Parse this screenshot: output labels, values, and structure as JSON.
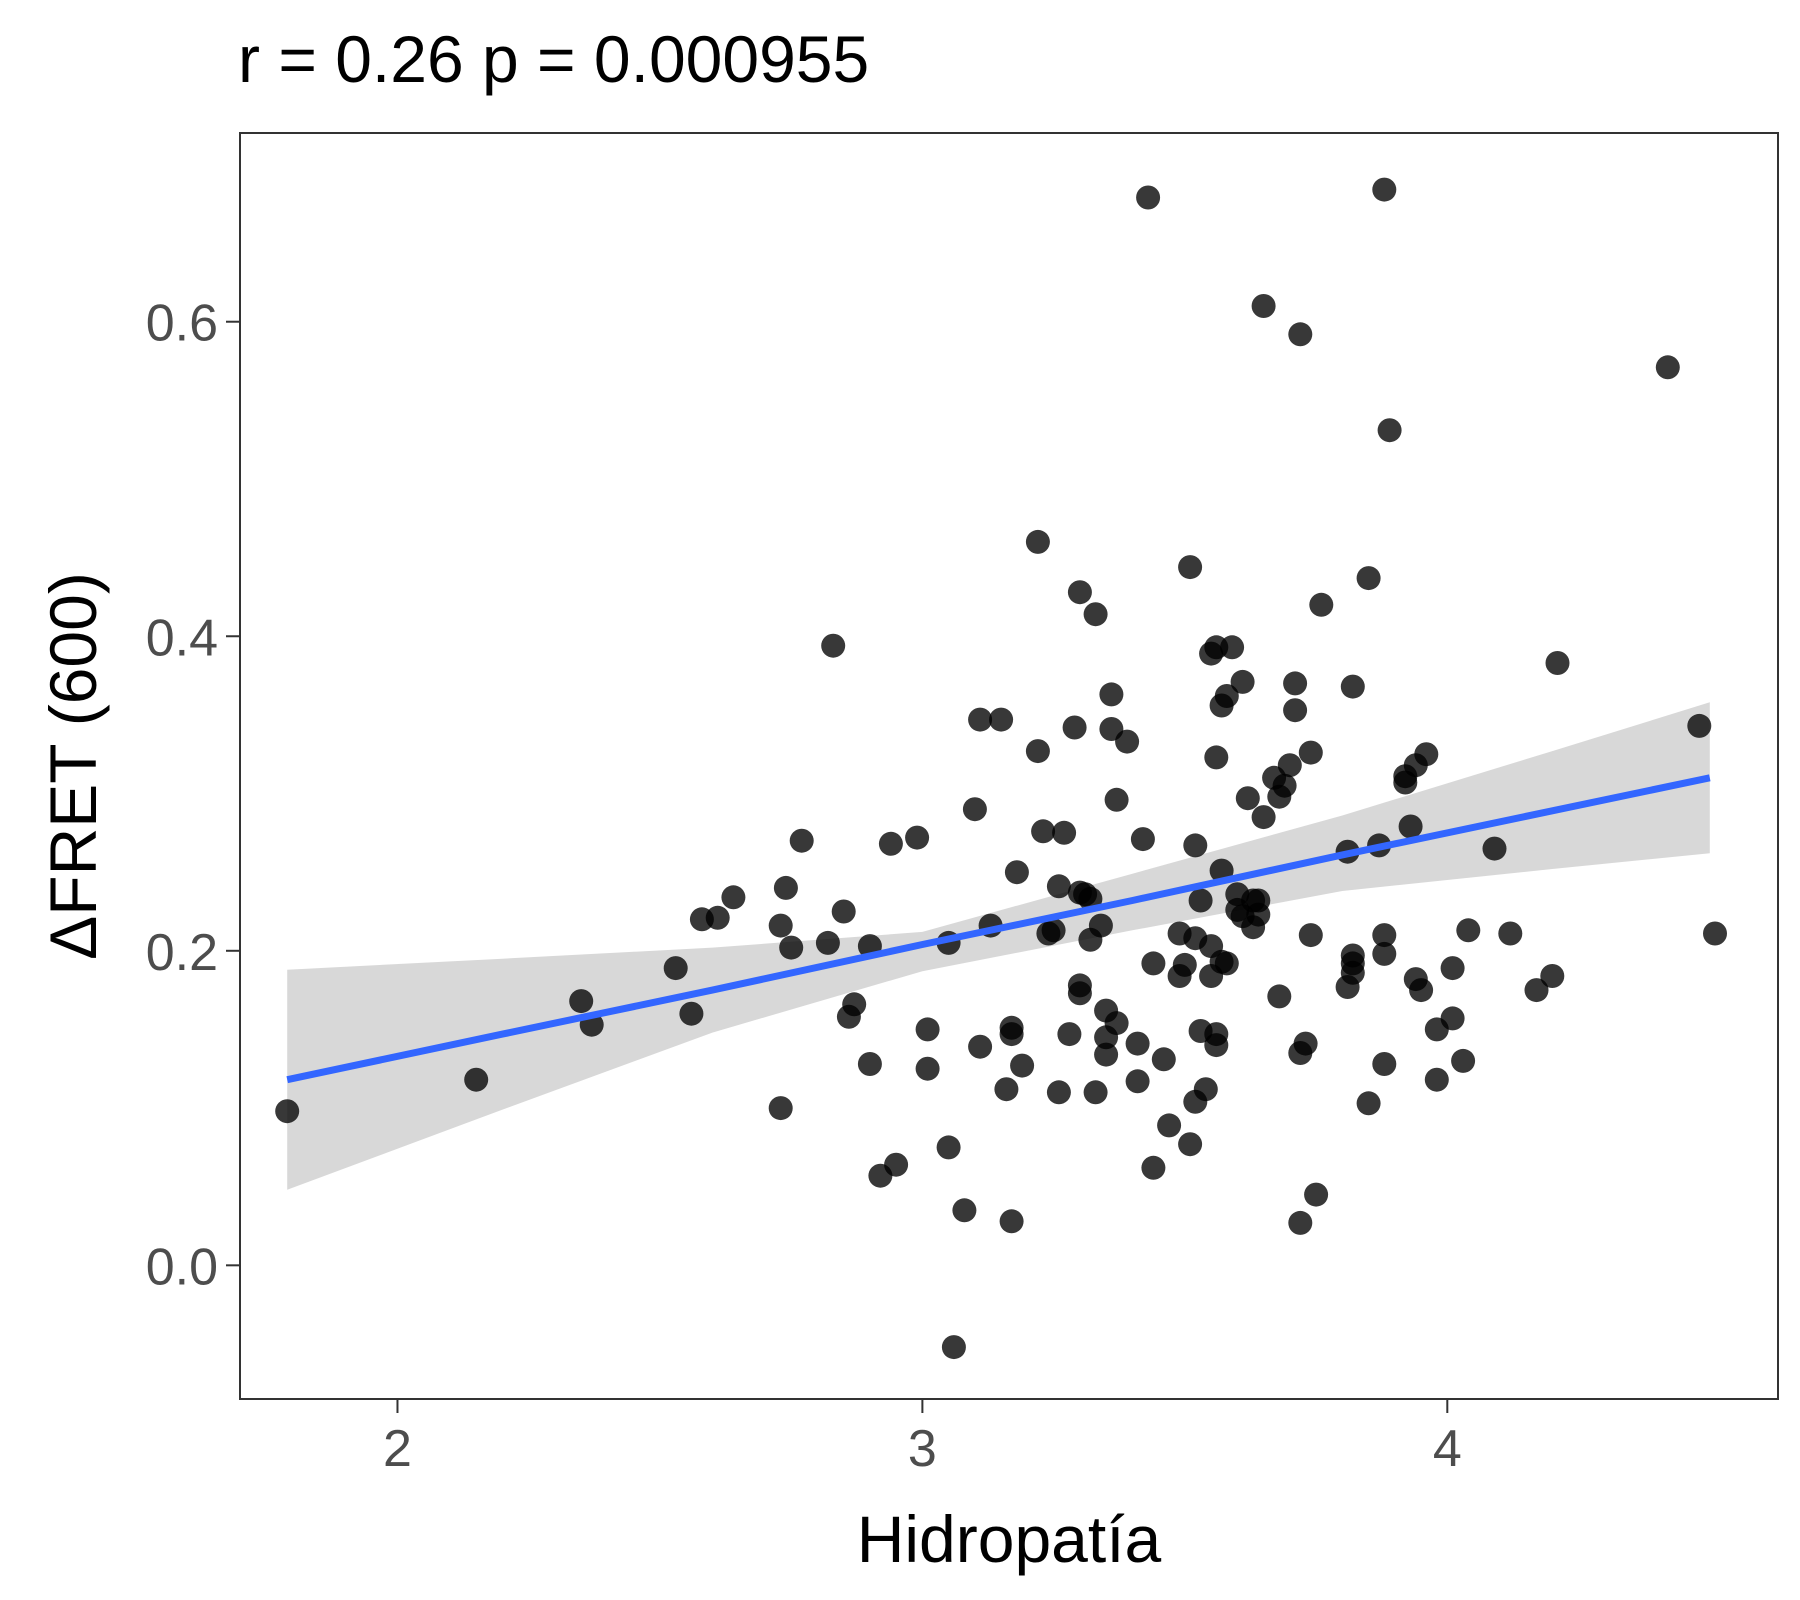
{
  "chart_data": {
    "type": "scatter",
    "title": "r =  0.26 p =  0.000955",
    "xlabel": "Hidropatía",
    "ylabel": "ΔFRET (600)",
    "xlim": [
      1.7,
      4.63
    ],
    "ylim": [
      -0.085,
      0.72
    ],
    "xticks": [
      2,
      3,
      4
    ],
    "xtick_labels": [
      "2",
      "3",
      "4"
    ],
    "yticks": [
      0.0,
      0.2,
      0.4,
      0.6
    ],
    "ytick_labels": [
      "0.0",
      "0.2",
      "0.4",
      "0.6"
    ],
    "grid": false,
    "point_color": "#000000",
    "fit": {
      "method": "linear",
      "color": "#3366ff",
      "band_color": "#bebebe",
      "x": [
        1.79,
        2.2,
        2.6,
        3.0,
        3.4,
        3.8,
        4.2,
        4.5
      ],
      "y": [
        0.118,
        0.147,
        0.175,
        0.204,
        0.232,
        0.261,
        0.289,
        0.31
      ],
      "lower": [
        0.048,
        0.099,
        0.148,
        0.187,
        0.213,
        0.238,
        0.252,
        0.262
      ],
      "upper": [
        0.188,
        0.195,
        0.202,
        0.212,
        0.249,
        0.286,
        0.327,
        0.358
      ]
    },
    "points": [
      [
        1.79,
        0.098
      ],
      [
        2.15,
        0.118
      ],
      [
        2.35,
        0.168
      ],
      [
        2.37,
        0.153
      ],
      [
        2.53,
        0.189
      ],
      [
        2.56,
        0.16
      ],
      [
        2.58,
        0.22
      ],
      [
        2.61,
        0.221
      ],
      [
        2.64,
        0.234
      ],
      [
        2.73,
        0.216
      ],
      [
        2.73,
        0.1
      ],
      [
        2.74,
        0.24
      ],
      [
        2.75,
        0.202
      ],
      [
        2.77,
        0.27
      ],
      [
        2.82,
        0.205
      ],
      [
        2.83,
        0.394
      ],
      [
        2.85,
        0.225
      ],
      [
        2.86,
        0.158
      ],
      [
        2.87,
        0.166
      ],
      [
        2.9,
        0.203
      ],
      [
        2.9,
        0.128
      ],
      [
        2.92,
        0.057
      ],
      [
        2.94,
        0.268
      ],
      [
        2.95,
        0.064
      ],
      [
        2.99,
        0.272
      ],
      [
        3.01,
        0.15
      ],
      [
        3.01,
        0.125
      ],
      [
        3.05,
        0.205
      ],
      [
        3.05,
        0.075
      ],
      [
        3.06,
        -0.052
      ],
      [
        3.08,
        0.035
      ],
      [
        3.1,
        0.29
      ],
      [
        3.11,
        0.347
      ],
      [
        3.11,
        0.139
      ],
      [
        3.13,
        0.216
      ],
      [
        3.15,
        0.347
      ],
      [
        3.16,
        0.112
      ],
      [
        3.17,
        0.151
      ],
      [
        3.17,
        0.147
      ],
      [
        3.17,
        0.028
      ],
      [
        3.18,
        0.25
      ],
      [
        3.19,
        0.127
      ],
      [
        3.22,
        0.46
      ],
      [
        3.22,
        0.327
      ],
      [
        3.23,
        0.276
      ],
      [
        3.24,
        0.211
      ],
      [
        3.25,
        0.213
      ],
      [
        3.26,
        0.241
      ],
      [
        3.26,
        0.11
      ],
      [
        3.27,
        0.275
      ],
      [
        3.28,
        0.147
      ],
      [
        3.29,
        0.342
      ],
      [
        3.3,
        0.178
      ],
      [
        3.3,
        0.173
      ],
      [
        3.3,
        0.428
      ],
      [
        3.3,
        0.237
      ],
      [
        3.31,
        0.236
      ],
      [
        3.32,
        0.207
      ],
      [
        3.32,
        0.233
      ],
      [
        3.33,
        0.414
      ],
      [
        3.33,
        0.11
      ],
      [
        3.34,
        0.216
      ],
      [
        3.35,
        0.162
      ],
      [
        3.35,
        0.145
      ],
      [
        3.35,
        0.134
      ],
      [
        3.36,
        0.363
      ],
      [
        3.36,
        0.341
      ],
      [
        3.37,
        0.154
      ],
      [
        3.37,
        0.296
      ],
      [
        3.39,
        0.333
      ],
      [
        3.41,
        0.141
      ],
      [
        3.41,
        0.117
      ],
      [
        3.42,
        0.271
      ],
      [
        3.43,
        0.679
      ],
      [
        3.44,
        0.192
      ],
      [
        3.44,
        0.062
      ],
      [
        3.46,
        0.131
      ],
      [
        3.47,
        0.089
      ],
      [
        3.49,
        0.211
      ],
      [
        3.49,
        0.184
      ],
      [
        3.5,
        0.191
      ],
      [
        3.51,
        0.444
      ],
      [
        3.51,
        0.077
      ],
      [
        3.52,
        0.208
      ],
      [
        3.52,
        0.267
      ],
      [
        3.52,
        0.104
      ],
      [
        3.53,
        0.232
      ],
      [
        3.53,
        0.149
      ],
      [
        3.54,
        0.112
      ],
      [
        3.55,
        0.389
      ],
      [
        3.55,
        0.203
      ],
      [
        3.55,
        0.184
      ],
      [
        3.56,
        0.147
      ],
      [
        3.56,
        0.14
      ],
      [
        3.56,
        0.393
      ],
      [
        3.56,
        0.323
      ],
      [
        3.57,
        0.356
      ],
      [
        3.57,
        0.251
      ],
      [
        3.57,
        0.193
      ],
      [
        3.58,
        0.362
      ],
      [
        3.58,
        0.192
      ],
      [
        3.59,
        0.393
      ],
      [
        3.6,
        0.236
      ],
      [
        3.6,
        0.226
      ],
      [
        3.61,
        0.371
      ],
      [
        3.61,
        0.222
      ],
      [
        3.62,
        0.297
      ],
      [
        3.63,
        0.232
      ],
      [
        3.63,
        0.215
      ],
      [
        3.64,
        0.232
      ],
      [
        3.64,
        0.223
      ],
      [
        3.65,
        0.61
      ],
      [
        3.65,
        0.285
      ],
      [
        3.67,
        0.31
      ],
      [
        3.68,
        0.171
      ],
      [
        3.68,
        0.298
      ],
      [
        3.69,
        0.305
      ],
      [
        3.7,
        0.318
      ],
      [
        3.71,
        0.37
      ],
      [
        3.71,
        0.353
      ],
      [
        3.72,
        0.592
      ],
      [
        3.72,
        0.027
      ],
      [
        3.72,
        0.135
      ],
      [
        3.73,
        0.141
      ],
      [
        3.74,
        0.21
      ],
      [
        3.74,
        0.326
      ],
      [
        3.75,
        0.045
      ],
      [
        3.76,
        0.42
      ],
      [
        3.81,
        0.177
      ],
      [
        3.81,
        0.263
      ],
      [
        3.82,
        0.186
      ],
      [
        3.82,
        0.192
      ],
      [
        3.82,
        0.197
      ],
      [
        3.82,
        0.368
      ],
      [
        3.85,
        0.437
      ],
      [
        3.85,
        0.103
      ],
      [
        3.87,
        0.267
      ],
      [
        3.88,
        0.198
      ],
      [
        3.88,
        0.128
      ],
      [
        3.88,
        0.21
      ],
      [
        3.88,
        0.684
      ],
      [
        3.89,
        0.531
      ],
      [
        3.92,
        0.307
      ],
      [
        3.92,
        0.311
      ],
      [
        3.93,
        0.279
      ],
      [
        3.94,
        0.318
      ],
      [
        3.94,
        0.182
      ],
      [
        3.95,
        0.175
      ],
      [
        3.96,
        0.325
      ],
      [
        3.98,
        0.118
      ],
      [
        3.98,
        0.15
      ],
      [
        4.01,
        0.189
      ],
      [
        4.01,
        0.157
      ],
      [
        4.03,
        0.13
      ],
      [
        4.04,
        0.213
      ],
      [
        4.09,
        0.265
      ],
      [
        4.12,
        0.211
      ],
      [
        4.17,
        0.175
      ],
      [
        4.2,
        0.184
      ],
      [
        4.21,
        0.383
      ],
      [
        4.42,
        0.571
      ],
      [
        4.48,
        0.343
      ],
      [
        4.51,
        0.211
      ]
    ]
  }
}
